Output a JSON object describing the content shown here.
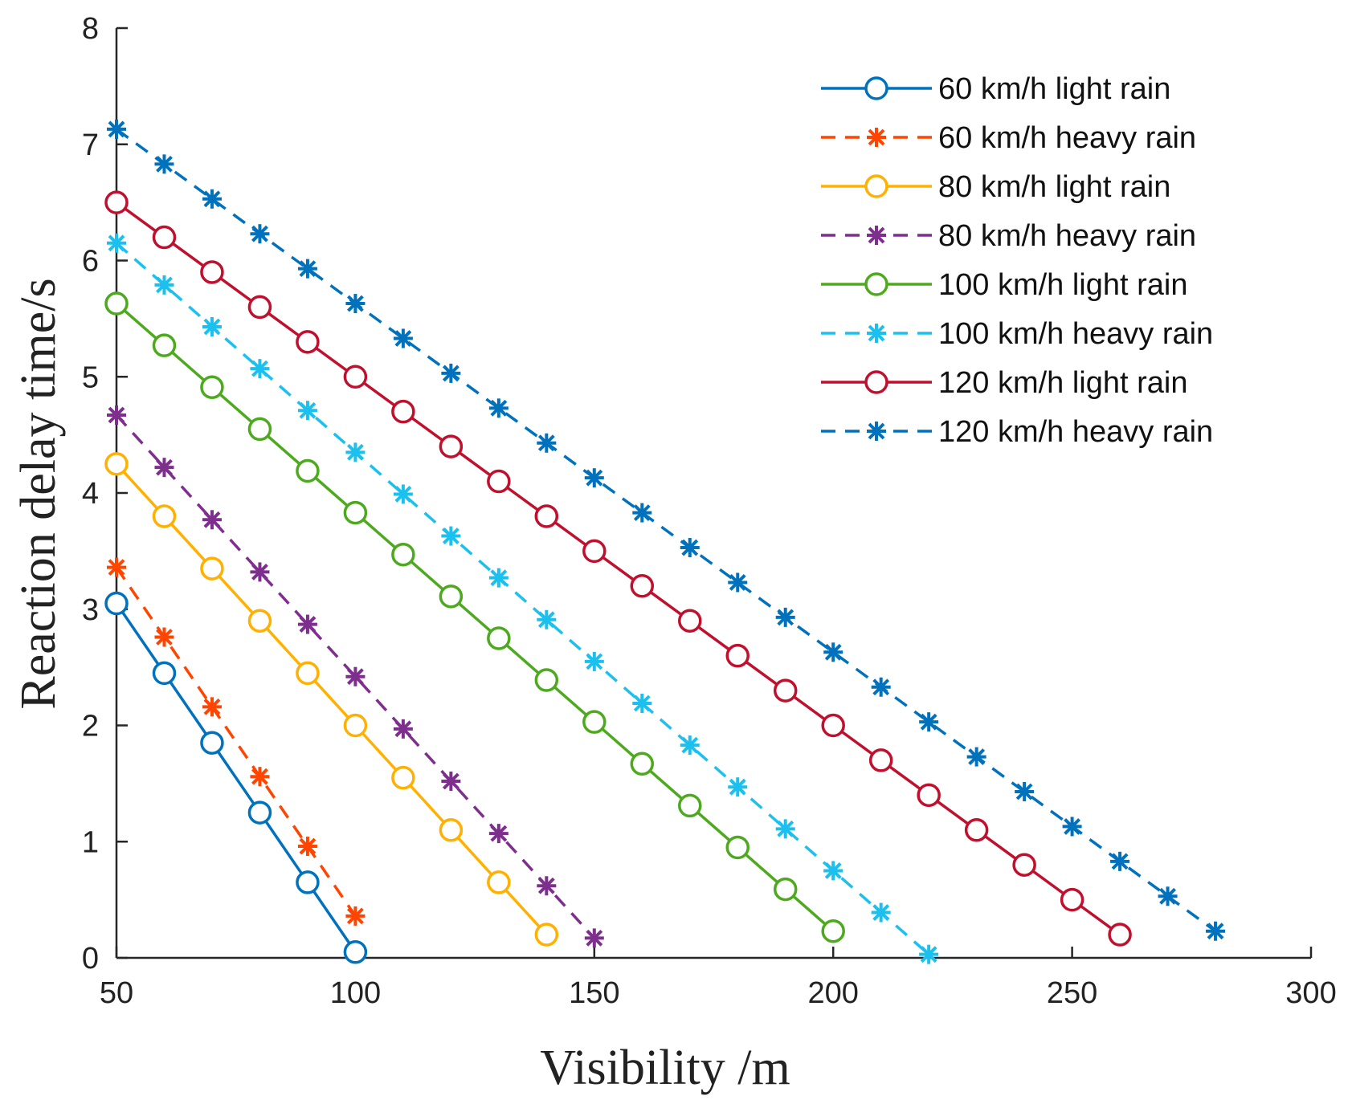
{
  "chart_data": {
    "type": "line",
    "title": "",
    "xlabel": "Visibility /m",
    "ylabel": "Reaction delay time/s",
    "xlim": [
      50,
      300
    ],
    "ylim": [
      0,
      8
    ],
    "xticks": [
      50,
      100,
      150,
      200,
      250,
      300
    ],
    "yticks": [
      0,
      1,
      2,
      3,
      4,
      5,
      6,
      7,
      8
    ],
    "grid": false,
    "legend_position": "top-right",
    "series": [
      {
        "name": "60 km/h light rain",
        "color": "#0072BD",
        "line": "solid",
        "marker": "circle",
        "x": [
          50,
          60,
          70,
          80,
          90,
          100
        ],
        "y": [
          3.05,
          2.45,
          1.85,
          1.25,
          0.65,
          0.05
        ]
      },
      {
        "name": "60 km/h heavy rain",
        "color": "#FF4500",
        "line": "dashed",
        "marker": "asterisk",
        "x": [
          50,
          60,
          70,
          80,
          90,
          100
        ],
        "y": [
          3.36,
          2.76,
          2.16,
          1.56,
          0.96,
          0.36
        ]
      },
      {
        "name": "80 km/h light rain",
        "color": "#FFB000",
        "line": "solid",
        "marker": "circle",
        "x": [
          50,
          60,
          70,
          80,
          90,
          100,
          110,
          120,
          130,
          140
        ],
        "y": [
          4.25,
          3.8,
          3.35,
          2.9,
          2.45,
          2.0,
          1.55,
          1.1,
          0.65,
          0.2
        ]
      },
      {
        "name": "80 km/h heavy rain",
        "color": "#7E2F8E",
        "line": "dashed",
        "marker": "asterisk",
        "x": [
          50,
          60,
          70,
          80,
          90,
          100,
          110,
          120,
          130,
          140,
          150
        ],
        "y": [
          4.67,
          4.22,
          3.77,
          3.32,
          2.87,
          2.42,
          1.97,
          1.52,
          1.07,
          0.62,
          0.17
        ]
      },
      {
        "name": "100 km/h light rain",
        "color": "#4DAA1E",
        "line": "solid",
        "marker": "circle",
        "x": [
          50,
          60,
          70,
          80,
          90,
          100,
          110,
          120,
          130,
          140,
          150,
          160,
          170,
          180,
          190,
          200
        ],
        "y": [
          5.63,
          5.27,
          4.91,
          4.55,
          4.19,
          3.83,
          3.47,
          3.11,
          2.75,
          2.39,
          2.03,
          1.67,
          1.31,
          0.95,
          0.59,
          0.23
        ]
      },
      {
        "name": "100 km/h heavy rain",
        "color": "#1BC0EE",
        "line": "dashed",
        "marker": "asterisk",
        "x": [
          50,
          60,
          70,
          80,
          90,
          100,
          110,
          120,
          130,
          140,
          150,
          160,
          170,
          180,
          190,
          200,
          210,
          220
        ],
        "y": [
          6.15,
          5.79,
          5.43,
          5.07,
          4.71,
          4.35,
          3.99,
          3.63,
          3.27,
          2.91,
          2.55,
          2.19,
          1.83,
          1.47,
          1.11,
          0.75,
          0.39,
          0.03
        ]
      },
      {
        "name": "120 km/h light rain",
        "color": "#C0102E",
        "line": "solid",
        "marker": "circle",
        "x": [
          50,
          60,
          70,
          80,
          90,
          100,
          110,
          120,
          130,
          140,
          150,
          160,
          170,
          180,
          190,
          200,
          210,
          220,
          230,
          240,
          250,
          260
        ],
        "y": [
          6.5,
          6.2,
          5.9,
          5.6,
          5.3,
          5.0,
          4.7,
          4.4,
          4.1,
          3.8,
          3.5,
          3.2,
          2.9,
          2.6,
          2.3,
          2.0,
          1.7,
          1.4,
          1.1,
          0.8,
          0.5,
          0.2
        ]
      },
      {
        "name": "120 km/h heavy rain",
        "color": "#0072BD",
        "line": "dashed",
        "marker": "asterisk",
        "x": [
          50,
          60,
          70,
          80,
          90,
          100,
          110,
          120,
          130,
          140,
          150,
          160,
          170,
          180,
          190,
          200,
          210,
          220,
          230,
          240,
          250,
          260,
          270,
          280
        ],
        "y": [
          7.13,
          6.83,
          6.53,
          6.23,
          5.93,
          5.63,
          5.33,
          5.03,
          4.73,
          4.43,
          4.13,
          3.83,
          3.53,
          3.23,
          2.93,
          2.63,
          2.33,
          2.03,
          1.73,
          1.43,
          1.13,
          0.83,
          0.53,
          0.23
        ]
      }
    ]
  }
}
